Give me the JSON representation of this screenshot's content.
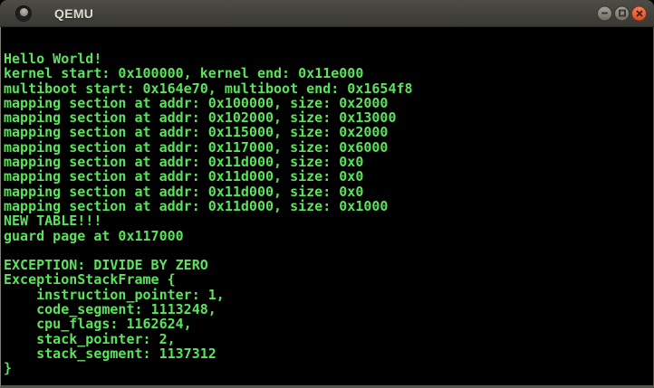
{
  "window": {
    "title": "QEMU",
    "controls": {
      "minimize_icon": "minimize-icon",
      "maximize_icon": "maximize-icon",
      "close_icon": "close-icon"
    }
  },
  "terminal": {
    "lines": [
      "Hello World!",
      "kernel start: 0x100000, kernel end: 0x11e000",
      "multiboot start: 0x164e70, multiboot end: 0x1654f8",
      "mapping section at addr: 0x100000, size: 0x2000",
      "mapping section at addr: 0x102000, size: 0x13000",
      "mapping section at addr: 0x115000, size: 0x2000",
      "mapping section at addr: 0x117000, size: 0x6000",
      "mapping section at addr: 0x11d000, size: 0x0",
      "mapping section at addr: 0x11d000, size: 0x0",
      "mapping section at addr: 0x11d000, size: 0x0",
      "mapping section at addr: 0x11d000, size: 0x1000",
      "NEW TABLE!!!",
      "guard page at 0x117000",
      "",
      "EXCEPTION: DIVIDE BY ZERO",
      "ExceptionStackFrame {",
      "    instruction_pointer: 1,",
      "    code_segment: 1113248,",
      "    cpu_flags: 1162624,",
      "    stack_pointer: 2,",
      "    stack_segment: 1137312",
      "}"
    ]
  },
  "colors": {
    "terminal_text": "#5be35b",
    "terminal_background": "#000000",
    "titlebar_background": "#403f3a",
    "close_button": "#e25a2e"
  }
}
